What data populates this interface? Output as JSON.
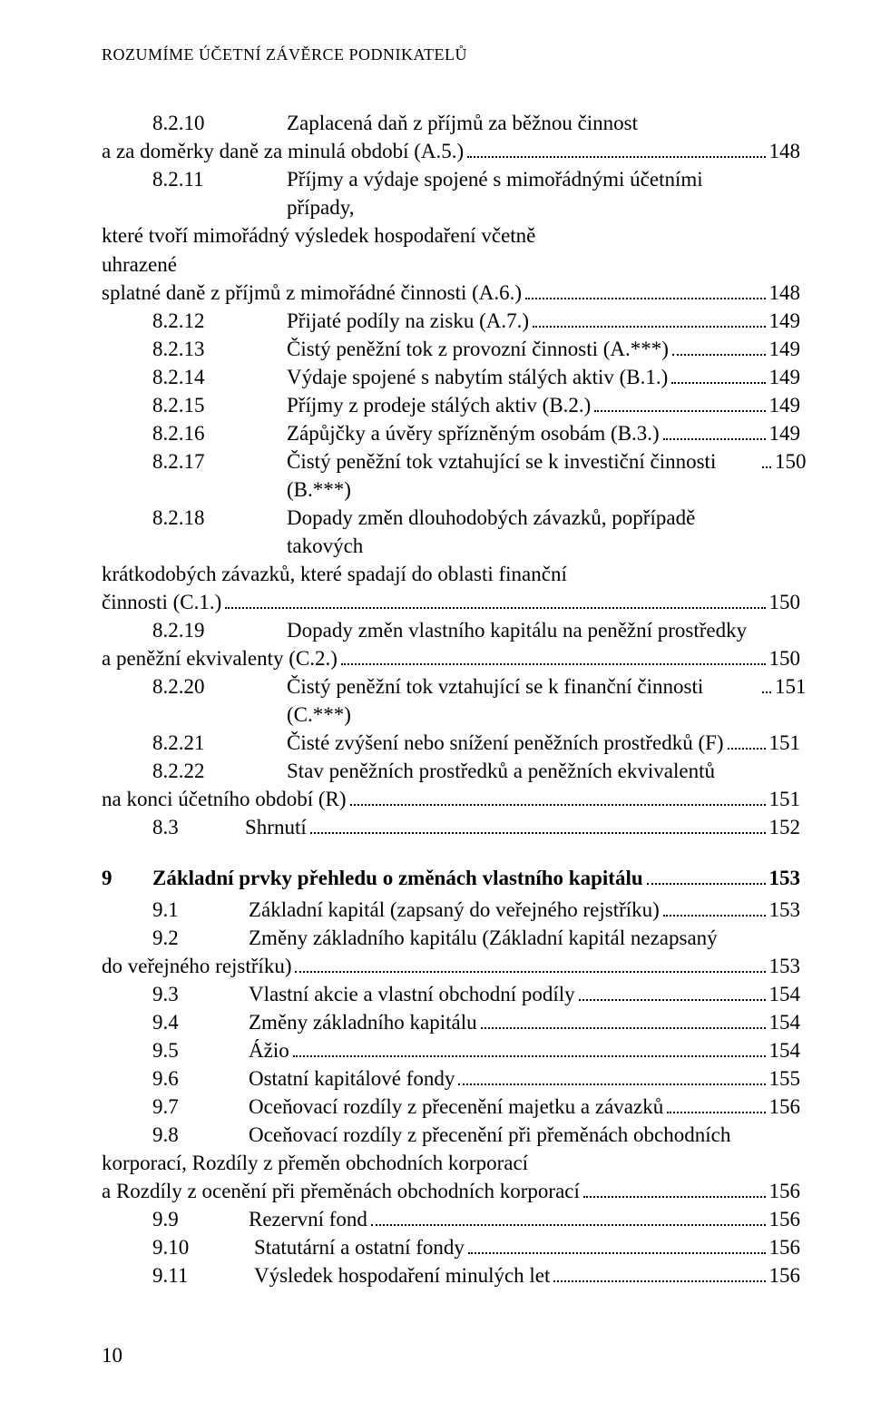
{
  "running_head": "ROZUMÍME ÚČETNÍ ZÁVĚRCE PODNIKATELŮ",
  "page_number": "10",
  "block_a": [
    {
      "num": "8.2.10",
      "lines": [
        "Zaplacená daň z příjmů za běžnou činnost"
      ],
      "tail": "a za doměrky daně za minulá období (A.5.)",
      "page": "148"
    },
    {
      "num": "8.2.11",
      "lines": [
        "Příjmy a výdaje spojené s mimořádnými účetními případy,",
        "které tvoří mimořádný výsledek hospodaření včetně uhrazené"
      ],
      "tail": "splatné daně z příjmů z mimořádné činnosti (A.6.)",
      "page": "148"
    },
    {
      "num": "8.2.12",
      "tail": "Přijaté podíly na zisku (A.7.)",
      "page": "149"
    },
    {
      "num": "8.2.13",
      "tail": "Čistý peněžní tok z provozní činnosti (A.***)",
      "page": "149"
    },
    {
      "num": "8.2.14",
      "tail": "Výdaje spojené s nabytím stálých aktiv (B.1.)",
      "page": "149"
    },
    {
      "num": "8.2.15",
      "tail": "Příjmy z prodeje stálých aktiv (B.2.)",
      "page": "149"
    },
    {
      "num": "8.2.16",
      "tail": "Zápůjčky a úvěry spřízněným osobám (B.3.)",
      "page": "149"
    },
    {
      "num": "8.2.17",
      "tail": "Čistý peněžní tok vztahující se k investiční činnosti (B.***)",
      "page": "150"
    },
    {
      "num": "8.2.18",
      "lines": [
        "Dopady změn dlouhodobých závazků, popřípadě takových",
        "krátkodobých závazků, které spadají do oblasti finanční"
      ],
      "tail": "činnosti (C.1.)",
      "page": "150"
    },
    {
      "num": "8.2.19",
      "lines": [
        "Dopady změn vlastního kapitálu na peněžní prostředky"
      ],
      "tail": "a peněžní ekvivalenty (C.2.)",
      "page": "150"
    },
    {
      "num": "8.2.20",
      "tail": "Čistý peněžní tok vztahující se k finanční činnosti (C.***)",
      "page": "151"
    },
    {
      "num": "8.2.21",
      "tail": "Čisté zvýšení nebo snížení peněžních prostředků (F)",
      "page": "151"
    },
    {
      "num": "8.2.22",
      "lines": [
        "Stav peněžních prostředků a peněžních ekvivalentů"
      ],
      "tail": "na konci účetního období (R)",
      "page": "151"
    }
  ],
  "row_83": {
    "num": "8.3",
    "tail": "Shrnutí",
    "page": "152"
  },
  "chapter9": {
    "num": "9",
    "tail": "Základní prvky přehledu o změnách vlastního kapitálu",
    "page": "153"
  },
  "block_b": [
    {
      "num": "9.1",
      "tail": "Základní kapitál (zapsaný do veřejného rejstříku)",
      "page": "153"
    },
    {
      "num": "9.2",
      "lines": [
        "Změny základního kapitálu (Základní kapitál nezapsaný"
      ],
      "tail": "do veřejného rejstříku)",
      "page": "153"
    },
    {
      "num": "9.3",
      "tail": "Vlastní akcie a vlastní obchodní podíly",
      "page": "154"
    },
    {
      "num": "9.4",
      "tail": "Změny základního kapitálu",
      "page": "154"
    },
    {
      "num": "9.5",
      "tail": "Ážio",
      "page": "154"
    },
    {
      "num": "9.6",
      "tail": "Ostatní kapitálové fondy",
      "page": "155"
    },
    {
      "num": "9.7",
      "tail": "Oceňovací rozdíly z přecenění majetku a závazků",
      "page": "156"
    },
    {
      "num": "9.8",
      "lines": [
        "Oceňovací rozdíly z přecenění při přeměnách obchodních",
        "korporací, Rozdíly z přeměn obchodních korporací"
      ],
      "tail": "a Rozdíly z ocenění při přeměnách obchodních korporací",
      "page": "156"
    },
    {
      "num": "9.9",
      "tail": "Rezervní fond",
      "page": "156"
    }
  ],
  "block_c": [
    {
      "num": "9.10",
      "tail": "Statutární a ostatní fondy",
      "page": "156"
    },
    {
      "num": "9.11",
      "tail": "Výsledek hospodaření minulých let",
      "page": "156"
    }
  ]
}
